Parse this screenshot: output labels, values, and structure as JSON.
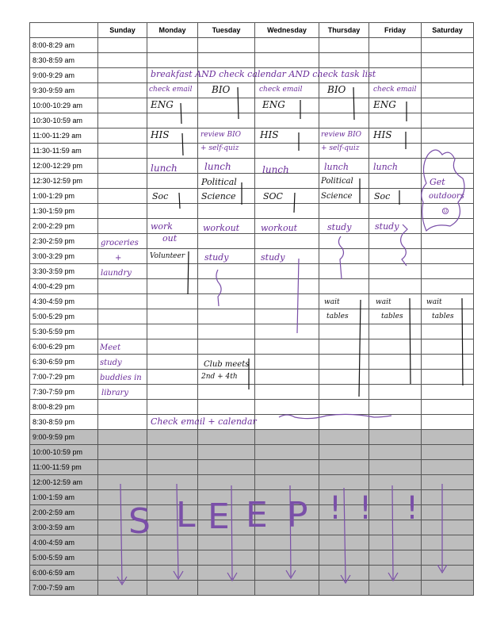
{
  "days": [
    "Sunday",
    "Monday",
    "Tuesday",
    "Wednesday",
    "Thursday",
    "Friday",
    "Saturday"
  ],
  "times": [
    "8:00-8:29 am",
    "8:30-8:59 am",
    "9:00-9:29 am",
    "9:30-9:59 am",
    "10:00-10:29 am",
    "10:30-10:59 am",
    "11:00-11:29 am",
    "11:30-11:59 am",
    "12:00-12:29 pm",
    "12:30-12:59 pm",
    "1:00-1:29 pm",
    "1:30-1:59 pm",
    "2:00-2:29 pm",
    "2:30-2:59 pm",
    "3:00-3:29 pm",
    "3:30-3:59 pm",
    "4:00-4:29 pm",
    "4:30-4:59 pm",
    "5:00-5:29 pm",
    "5:30-5:59 pm",
    "6:00-6:29 pm",
    "6:30-6:59 pm",
    "7:00-7:29 pm",
    "7:30-7:59 pm",
    "8:00-8:29 pm",
    "8:30-8:59 pm",
    "9:00-9:59 pm",
    "10:00-10:59 pm",
    "11:00-11:59 pm",
    "12:00-12:59 am",
    "1:00-1:59 am",
    "2:00-2:59 am",
    "3:00-3:59 am",
    "4:00-4:59 am",
    "5:00-5:59 am",
    "6:00-6:59 am",
    "7:00-7:59 am"
  ],
  "notes": {
    "breakfast": "breakfast AND check calendar AND check task list",
    "evening": "Check email + calendar",
    "sunday": [
      "groceries",
      "+",
      "laundry",
      "Meet",
      "study",
      "buddies in",
      "library"
    ],
    "monday": [
      "check email",
      "ENG",
      "HIS",
      "lunch",
      "Soc",
      "work",
      "out",
      "Volunteer"
    ],
    "tuesday": [
      "BIO",
      "review BIO",
      "+ self-quiz",
      "lunch",
      "Political",
      "Science",
      "workout",
      "study",
      "Club meets",
      "2nd + 4th"
    ],
    "wednesday": [
      "check email",
      "ENG",
      "HIS",
      "lunch",
      "SOC",
      "workout",
      "study"
    ],
    "thursday": [
      "BIO",
      "review BIO",
      "+ self-quiz",
      "lunch",
      "Political",
      "Science",
      "study",
      "wait",
      "tables"
    ],
    "friday": [
      "check email",
      "ENG",
      "HIS",
      "lunch",
      "Soc",
      "study",
      "wait",
      "tables"
    ],
    "saturday": [
      "Get",
      "outdoors",
      "☺",
      "wait",
      "tables"
    ]
  },
  "sleep_letters": [
    "S",
    "L",
    "E",
    "E",
    "P",
    "!",
    "!",
    "!"
  ],
  "colors": {
    "ink_purple": "#6a2d9a",
    "ink_black": "#111111",
    "night_shade": "#bdbdbd"
  }
}
